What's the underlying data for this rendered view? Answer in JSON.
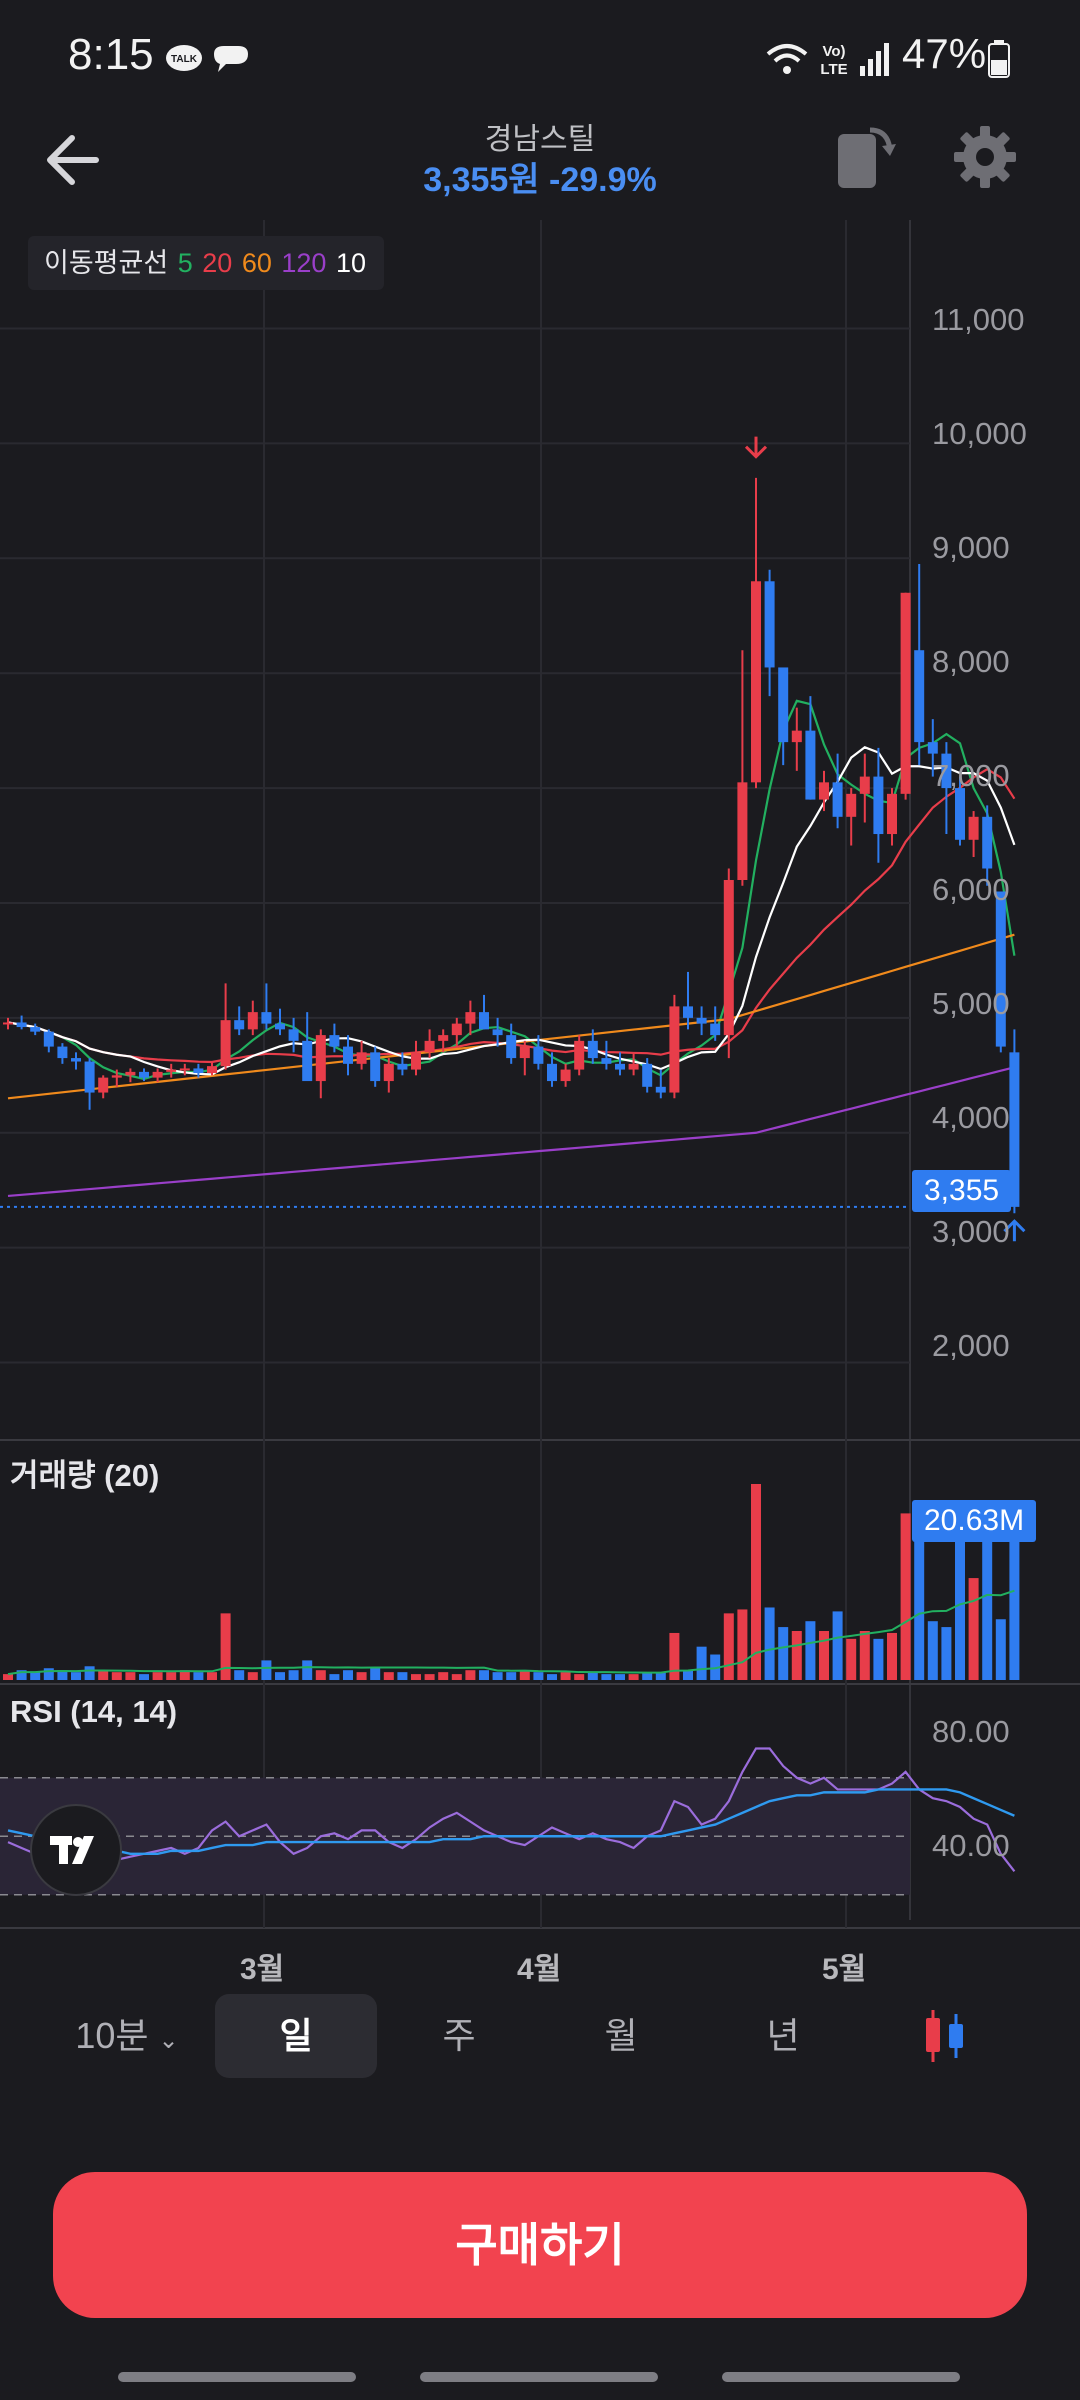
{
  "status_bar": {
    "time": "8:15",
    "battery": "47%",
    "icons": [
      "talk-icon",
      "chat-bubble-icon",
      "wifi-icon",
      "volte-icon",
      "signal-icon",
      "battery-icon"
    ]
  },
  "header": {
    "title": "경남스틸",
    "price_change": "3,355원 -29.9%"
  },
  "ma_legend": {
    "label": "이동평균선",
    "periods": [
      {
        "text": "5",
        "color": "#22b060"
      },
      {
        "text": "20",
        "color": "#e83d4a"
      },
      {
        "text": "60",
        "color": "#f08a1c"
      },
      {
        "text": "120",
        "color": "#9a3fc9"
      },
      {
        "text": "10",
        "color": "#ffffff"
      }
    ]
  },
  "price_axis": [
    "11,000",
    "10,000",
    "9,000",
    "8,000",
    "7,000",
    "6,000",
    "5,000",
    "4,000",
    "3,000",
    "2,000"
  ],
  "current_price_tag": "3,355",
  "volume_panel": {
    "label": "거래량 (20)",
    "tag": "20.63M"
  },
  "rsi_panel": {
    "label": "RSI (14, 14)",
    "axis": [
      "80.00",
      "40.00"
    ]
  },
  "x_axis": [
    "3월",
    "4월",
    "5월"
  ],
  "period_tabs": {
    "minute": "10분",
    "items": [
      "일",
      "주",
      "월",
      "년"
    ],
    "active": "일"
  },
  "buy_button": "구매하기",
  "colors": {
    "up": "#e83d4a",
    "down": "#2f7cf0",
    "accent": "#4a8ef2",
    "buy": "#f2434f"
  },
  "chart_data": {
    "type": "candlestick",
    "ylim": [
      1500,
      11800
    ],
    "last_price": 3355,
    "x_labels": [
      "3월",
      "4월",
      "5월"
    ],
    "candles": [
      [
        4950,
        5000,
        4900,
        4960
      ],
      [
        4960,
        5020,
        4900,
        4920
      ],
      [
        4920,
        4950,
        4850,
        4880
      ],
      [
        4880,
        4900,
        4700,
        4750
      ],
      [
        4750,
        4780,
        4600,
        4650
      ],
      [
        4650,
        4700,
        4550,
        4620
      ],
      [
        4620,
        4650,
        4200,
        4350
      ],
      [
        4350,
        4500,
        4300,
        4480
      ],
      [
        4480,
        4550,
        4400,
        4500
      ],
      [
        4500,
        4560,
        4440,
        4530
      ],
      [
        4530,
        4560,
        4450,
        4480
      ],
      [
        4480,
        4560,
        4440,
        4530
      ],
      [
        4530,
        4600,
        4480,
        4550
      ],
      [
        4550,
        4600,
        4500,
        4560
      ],
      [
        4560,
        4600,
        4480,
        4520
      ],
      [
        4520,
        4620,
        4500,
        4580
      ],
      [
        4580,
        5300,
        4550,
        4980
      ],
      [
        4980,
        5100,
        4850,
        4900
      ],
      [
        4900,
        5150,
        4850,
        5050
      ],
      [
        5050,
        5300,
        4900,
        4950
      ],
      [
        4950,
        5080,
        4850,
        4900
      ],
      [
        4900,
        5000,
        4700,
        4800
      ],
      [
        4800,
        5050,
        4500,
        4450
      ],
      [
        4450,
        4900,
        4300,
        4850
      ],
      [
        4850,
        4950,
        4700,
        4750
      ],
      [
        4750,
        4850,
        4500,
        4600
      ],
      [
        4600,
        4800,
        4550,
        4700
      ],
      [
        4700,
        4750,
        4400,
        4450
      ],
      [
        4450,
        4650,
        4350,
        4600
      ],
      [
        4600,
        4700,
        4500,
        4550
      ],
      [
        4550,
        4800,
        4500,
        4700
      ],
      [
        4700,
        4900,
        4650,
        4800
      ],
      [
        4800,
        4900,
        4700,
        4850
      ],
      [
        4850,
        5000,
        4750,
        4950
      ],
      [
        4950,
        5150,
        4850,
        5050
      ],
      [
        5050,
        5200,
        4900,
        4900
      ],
      [
        4900,
        5000,
        4750,
        4850
      ],
      [
        4850,
        4950,
        4600,
        4650
      ],
      [
        4650,
        4800,
        4500,
        4750
      ],
      [
        4750,
        4850,
        4550,
        4600
      ],
      [
        4600,
        4700,
        4400,
        4450
      ],
      [
        4450,
        4600,
        4400,
        4550
      ],
      [
        4550,
        4850,
        4500,
        4800
      ],
      [
        4800,
        4900,
        4600,
        4650
      ],
      [
        4650,
        4800,
        4550,
        4600
      ],
      [
        4600,
        4700,
        4500,
        4550
      ],
      [
        4550,
        4700,
        4500,
        4600
      ],
      [
        4600,
        4650,
        4350,
        4400
      ],
      [
        4400,
        4550,
        4300,
        4350
      ],
      [
        4350,
        5200,
        4300,
        5100
      ],
      [
        5100,
        5400,
        4900,
        5000
      ],
      [
        5000,
        5100,
        4850,
        4950
      ],
      [
        4950,
        5100,
        4800,
        4850
      ],
      [
        4850,
        6300,
        4650,
        6200
      ],
      [
        6200,
        8200,
        6150,
        7050
      ],
      [
        7050,
        9700,
        7000,
        8800
      ],
      [
        8800,
        8900,
        7800,
        8050
      ],
      [
        8050,
        8000,
        7200,
        7400
      ],
      [
        7400,
        7700,
        7150,
        7500
      ],
      [
        7500,
        7800,
        6900,
        6900
      ],
      [
        6900,
        7150,
        6800,
        7050
      ],
      [
        7050,
        7300,
        6650,
        6750
      ],
      [
        6750,
        7000,
        6500,
        6950
      ],
      [
        6950,
        7300,
        6700,
        7100
      ],
      [
        7100,
        7350,
        6350,
        6600
      ],
      [
        6600,
        7000,
        6500,
        6950
      ],
      [
        6950,
        8700,
        6900,
        8700
      ],
      [
        8200,
        8950,
        7200,
        7400
      ],
      [
        7400,
        7600,
        7100,
        7300
      ],
      [
        7300,
        7400,
        6600,
        7000
      ],
      [
        7000,
        7100,
        6500,
        6550
      ],
      [
        6550,
        6800,
        6400,
        6750
      ],
      [
        6750,
        6850,
        6150,
        6300
      ],
      [
        6100,
        6100,
        4700,
        4750
      ],
      [
        4700,
        4900,
        3300,
        3355
      ]
    ],
    "ma_lines": [
      {
        "name": "5",
        "color": "#22b060"
      },
      {
        "name": "20",
        "color": "#e83d4a"
      },
      {
        "name": "60",
        "color": "#f08a1c"
      },
      {
        "name": "120",
        "color": "#9a3fc9"
      },
      {
        "name": "10",
        "color": "#ffffff"
      }
    ],
    "volume_max": 1,
    "volumes": [
      0.03,
      0.05,
      0.04,
      0.06,
      0.05,
      0.04,
      0.07,
      0.05,
      0.04,
      0.04,
      0.03,
      0.04,
      0.04,
      0.05,
      0.04,
      0.04,
      0.34,
      0.05,
      0.04,
      0.1,
      0.04,
      0.05,
      0.1,
      0.05,
      0.03,
      0.05,
      0.04,
      0.06,
      0.04,
      0.04,
      0.03,
      0.03,
      0.04,
      0.03,
      0.05,
      0.05,
      0.04,
      0.04,
      0.05,
      0.04,
      0.03,
      0.04,
      0.03,
      0.04,
      0.03,
      0.03,
      0.03,
      0.04,
      0.04,
      0.24,
      0.05,
      0.17,
      0.13,
      0.34,
      0.36,
      1.0,
      0.37,
      0.27,
      0.25,
      0.3,
      0.25,
      0.35,
      0.21,
      0.25,
      0.21,
      0.24,
      0.85,
      0.88,
      0.3,
      0.27,
      0.72,
      0.52,
      0.74,
      0.31,
      0.82
    ],
    "rsi_axis": [
      80,
      40
    ],
    "rsi": [
      48,
      46,
      44,
      42,
      43,
      40,
      38,
      41,
      42,
      43,
      44,
      45,
      46,
      44,
      46,
      52,
      55,
      50,
      52,
      54,
      48,
      44,
      46,
      50,
      51,
      49,
      52,
      52,
      48,
      46,
      49,
      53,
      56,
      58,
      55,
      52,
      50,
      48,
      47,
      50,
      53,
      51,
      49,
      51,
      49,
      48,
      46,
      50,
      52,
      62,
      60,
      54,
      56,
      62,
      72,
      80,
      80,
      74,
      70,
      68,
      70,
      66,
      66,
      66,
      66,
      68,
      72,
      66,
      63,
      62,
      60,
      56,
      54,
      44,
      38
    ],
    "rsi_signal": [
      52,
      51,
      50,
      49,
      48,
      47,
      46,
      45,
      45,
      44,
      44,
      44,
      45,
      45,
      45,
      46,
      47,
      47,
      47,
      48,
      48,
      48,
      48,
      48,
      48,
      48,
      48,
      48,
      48,
      48,
      48,
      48,
      49,
      49,
      49,
      50,
      50,
      50,
      50,
      50,
      50,
      50,
      50,
      50,
      50,
      50,
      50,
      50,
      50,
      51,
      52,
      53,
      54,
      56,
      58,
      60,
      62,
      63,
      64,
      64,
      65,
      65,
      65,
      65,
      66,
      66,
      66,
      66,
      66,
      66,
      65,
      63,
      61,
      59,
      57
    ]
  }
}
